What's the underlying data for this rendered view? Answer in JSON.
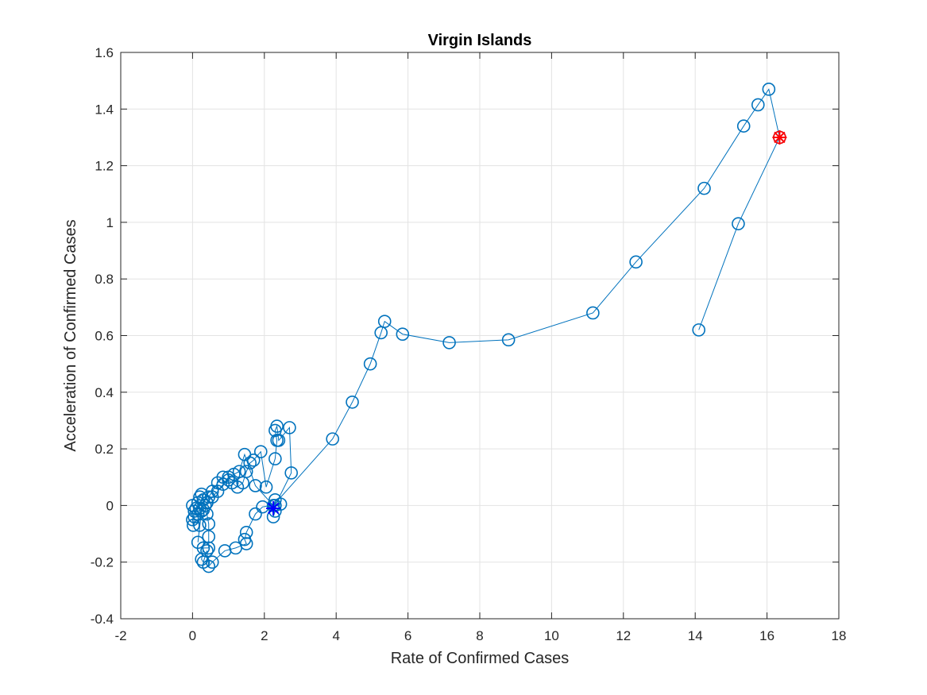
{
  "chart_data": {
    "type": "line",
    "title": "Virgin Islands",
    "xlabel": "Rate of Confirmed Cases",
    "ylabel": "Acceleration of Confirmed Cases",
    "xlim": [
      -2,
      18
    ],
    "ylim": [
      -0.4,
      1.6
    ],
    "xticks": [
      "-2",
      "0",
      "2",
      "4",
      "6",
      "8",
      "10",
      "12",
      "14",
      "16",
      "18"
    ],
    "yticks": [
      "-0.4",
      "-0.2",
      "0",
      "0.2",
      "0.4",
      "0.6",
      "0.8",
      "1",
      "1.2",
      "1.4",
      "1.6"
    ],
    "grid": true,
    "colors": {
      "series": "#0072BD",
      "start_marker": "#0000FF",
      "end_marker": "#FF0000"
    },
    "series": [
      {
        "marker": "circle",
        "points": [
          [
            0,
            0
          ],
          [
            0.05,
            -0.02
          ],
          [
            0.0,
            -0.05
          ],
          [
            0.02,
            -0.07
          ],
          [
            0.05,
            -0.04
          ],
          [
            0.1,
            -0.01
          ],
          [
            0.15,
            0.01
          ],
          [
            0.2,
            0.03
          ],
          [
            0.25,
            0.04
          ],
          [
            0.3,
            0.02
          ],
          [
            0.35,
            0.0
          ],
          [
            0.4,
            0.01
          ],
          [
            0.45,
            0.03
          ],
          [
            0.55,
            0.05
          ],
          [
            0.7,
            0.08
          ],
          [
            0.85,
            0.1
          ],
          [
            1.0,
            0.09
          ],
          [
            1.1,
            0.08
          ],
          [
            1.25,
            0.065
          ],
          [
            1.4,
            0.08
          ],
          [
            1.5,
            0.12
          ],
          [
            1.6,
            0.15
          ],
          [
            1.7,
            0.16
          ],
          [
            1.9,
            0.19
          ],
          [
            2.05,
            0.065
          ],
          [
            2.3,
            0.165
          ],
          [
            2.35,
            0.23
          ],
          [
            2.3,
            0.265
          ],
          [
            2.35,
            0.28
          ],
          [
            2.4,
            0.23
          ],
          [
            2.7,
            0.275
          ],
          [
            2.75,
            0.115
          ],
          [
            2.3,
            0.0
          ],
          [
            2.3,
            -0.02
          ],
          [
            2.25,
            -0.04
          ],
          [
            2.3,
            0.02
          ],
          [
            2.45,
            0.005
          ],
          [
            1.95,
            -0.005
          ],
          [
            1.75,
            -0.03
          ],
          [
            1.5,
            -0.095
          ],
          [
            1.45,
            -0.12
          ],
          [
            1.5,
            -0.135
          ],
          [
            1.2,
            -0.15
          ],
          [
            0.9,
            -0.16
          ],
          [
            0.55,
            -0.2
          ],
          [
            0.45,
            -0.215
          ],
          [
            0.4,
            -0.16
          ],
          [
            0.3,
            -0.2
          ],
          [
            0.25,
            -0.19
          ],
          [
            0.3,
            -0.15
          ],
          [
            0.45,
            -0.15
          ],
          [
            0.45,
            -0.11
          ],
          [
            0.45,
            -0.065
          ],
          [
            0.4,
            -0.03
          ],
          [
            0.3,
            -0.015
          ],
          [
            0.2,
            -0.01
          ],
          [
            0.15,
            -0.03
          ],
          [
            0.2,
            -0.07
          ],
          [
            0.15,
            -0.13
          ],
          [
            0.25,
            -0.02
          ],
          [
            0.4,
            0.01
          ],
          [
            0.55,
            0.03
          ],
          [
            0.7,
            0.05
          ],
          [
            0.85,
            0.075
          ],
          [
            1.0,
            0.1
          ],
          [
            1.15,
            0.11
          ],
          [
            1.3,
            0.12
          ],
          [
            1.45,
            0.18
          ],
          [
            1.75,
            0.07
          ],
          [
            2.25,
            0.0
          ],
          [
            3.9,
            0.235
          ],
          [
            4.45,
            0.365
          ],
          [
            4.95,
            0.5
          ],
          [
            5.25,
            0.61
          ],
          [
            5.35,
            0.65
          ],
          [
            5.85,
            0.605
          ],
          [
            7.15,
            0.575
          ],
          [
            8.8,
            0.585
          ],
          [
            11.15,
            0.68
          ],
          [
            12.35,
            0.86
          ],
          [
            14.25,
            1.12
          ],
          [
            15.35,
            1.34
          ],
          [
            15.75,
            1.415
          ],
          [
            16.05,
            1.47
          ],
          [
            16.35,
            1.3
          ],
          [
            15.2,
            0.995
          ],
          [
            14.1,
            0.62
          ]
        ]
      }
    ],
    "start_point": [
      2.25,
      -0.01
    ],
    "end_point": [
      16.35,
      1.3
    ]
  }
}
